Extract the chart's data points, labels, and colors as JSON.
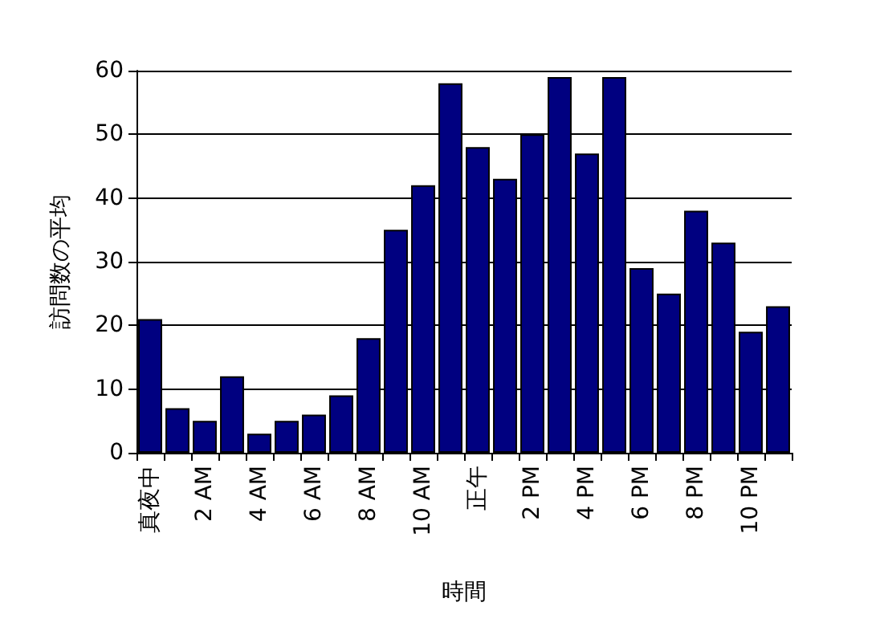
{
  "chart_data": {
    "type": "bar",
    "xlabel": "時間",
    "ylabel": "訪問数の平均",
    "categories": [
      "真夜中",
      null,
      "2 AM",
      null,
      "4 AM",
      null,
      "6 AM",
      null,
      "8 AM",
      null,
      "10 AM",
      null,
      "正午",
      null,
      "2 PM",
      null,
      "4 PM",
      null,
      "6 PM",
      null,
      "8 PM",
      null,
      "10 PM",
      null
    ],
    "values": [
      21,
      7,
      5,
      12,
      3,
      5,
      6,
      9,
      18,
      35,
      42,
      58,
      48,
      43,
      50,
      59,
      47,
      59,
      29,
      25,
      38,
      33,
      19,
      23
    ],
    "color": "#000080",
    "ylim": [
      0,
      60
    ],
    "yticks": [
      0,
      10,
      20,
      30,
      40,
      50,
      60
    ],
    "grid": "y"
  }
}
